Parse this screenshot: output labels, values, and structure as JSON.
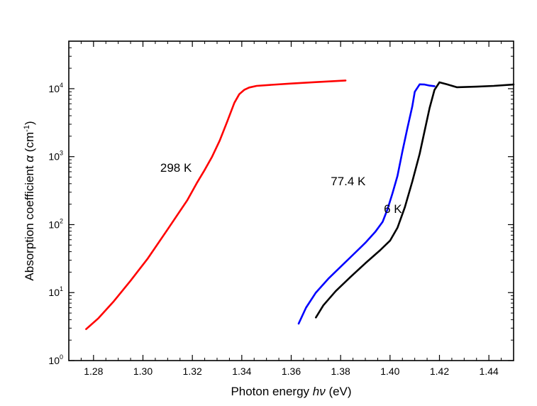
{
  "chart_data": {
    "type": "line",
    "title": "",
    "xlabel_parts": [
      "Photon energy ",
      "hν",
      " (eV)"
    ],
    "ylabel_parts": [
      "Absorption coefficient ",
      "α",
      " (cm",
      "-1",
      ")"
    ],
    "xlim": [
      1.27,
      1.45
    ],
    "ylim": [
      1,
      50000
    ],
    "yscale": "log",
    "grid": false,
    "x_ticks": [
      1.28,
      1.3,
      1.32,
      1.34,
      1.36,
      1.38,
      1.4,
      1.42,
      1.44
    ],
    "x_tick_labels": [
      "1.28",
      "1.30",
      "1.32",
      "1.34",
      "1.36",
      "1.38",
      "1.40",
      "1.42",
      "1.44"
    ],
    "y_ticks": [
      1,
      10,
      100,
      1000,
      10000
    ],
    "y_tick_labels": [
      {
        "base": "10",
        "exp": "0"
      },
      {
        "base": "10",
        "exp": "1"
      },
      {
        "base": "10",
        "exp": "2"
      },
      {
        "base": "10",
        "exp": "3"
      },
      {
        "base": "10",
        "exp": "4"
      }
    ],
    "series": [
      {
        "name": "298 K",
        "color": "#ff0000",
        "x": [
          1.277,
          1.282,
          1.288,
          1.295,
          1.302,
          1.31,
          1.318,
          1.322,
          1.325,
          1.328,
          1.331,
          1.334,
          1.337,
          1.339,
          1.341,
          1.343,
          1.346,
          1.352,
          1.36,
          1.37,
          1.382
        ],
        "y": [
          2.9,
          4.2,
          7.3,
          15,
          32,
          85,
          230,
          420,
          640,
          1000,
          1700,
          3200,
          6200,
          8300,
          9600,
          10400,
          11000,
          11400,
          11900,
          12500,
          13200
        ]
      },
      {
        "name": "77.4 K",
        "color": "#0000ff",
        "x": [
          1.363,
          1.366,
          1.37,
          1.375,
          1.38,
          1.385,
          1.39,
          1.394,
          1.397,
          1.399,
          1.401,
          1.403,
          1.405,
          1.407,
          1.409,
          1.41,
          1.412,
          1.414,
          1.416,
          1.418
        ],
        "y": [
          3.5,
          6,
          10,
          16,
          24,
          36,
          54,
          78,
          110,
          170,
          290,
          520,
          1200,
          2600,
          5500,
          9000,
          11600,
          11500,
          11100,
          10900
        ]
      },
      {
        "name": "6 K",
        "color": "#000000",
        "x": [
          1.37,
          1.373,
          1.378,
          1.384,
          1.39,
          1.396,
          1.4,
          1.403,
          1.406,
          1.409,
          1.412,
          1.414,
          1.416,
          1.418,
          1.42,
          1.423,
          1.427,
          1.435,
          1.442,
          1.45
        ],
        "y": [
          4.3,
          6.5,
          10.5,
          17,
          27,
          42,
          58,
          90,
          180,
          430,
          1100,
          2400,
          5200,
          9600,
          12400,
          11600,
          10500,
          10700,
          11000,
          11500
        ]
      }
    ],
    "annotations": [
      {
        "text": "298 K",
        "x": 1.307,
        "y": 600
      },
      {
        "text": "77.4 K",
        "x": 1.376,
        "y": 380
      },
      {
        "text": "6 K",
        "x": 1.3975,
        "y": 148
      }
    ]
  }
}
